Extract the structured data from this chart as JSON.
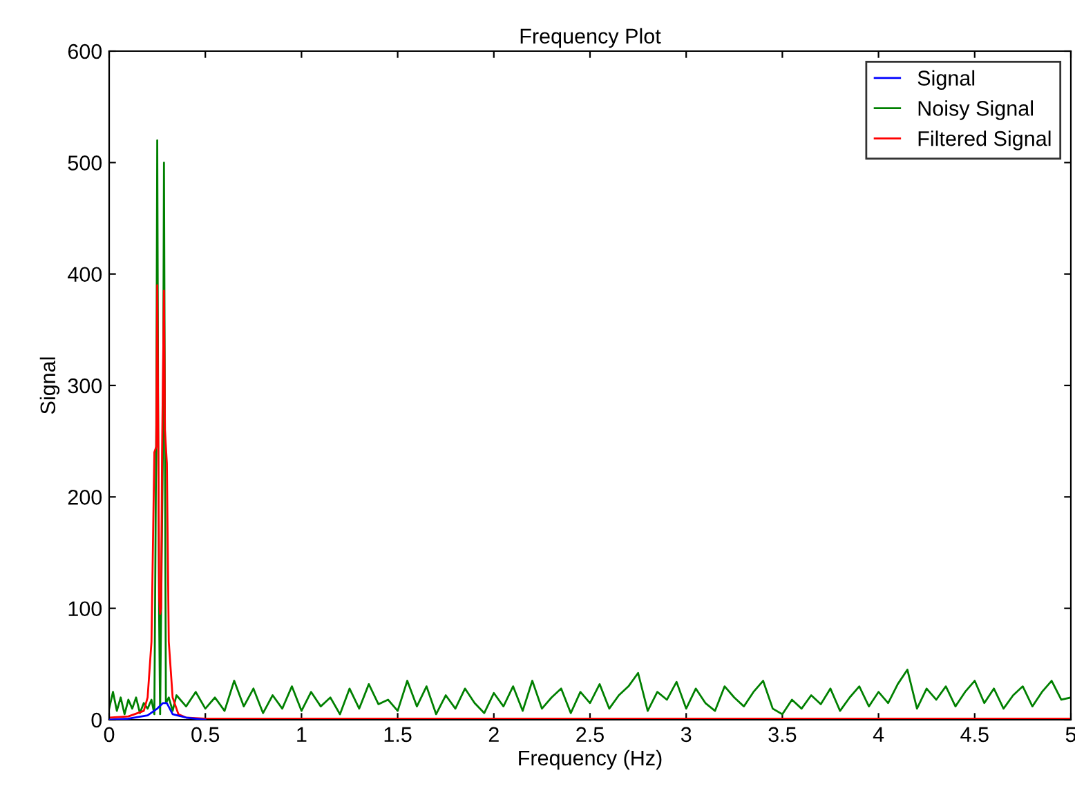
{
  "chart_data": {
    "type": "line",
    "title": "Frequency Plot",
    "xlabel": "Frequency (Hz)",
    "ylabel": "Signal",
    "xlim": [
      0,
      5
    ],
    "ylim": [
      0,
      600
    ],
    "xticks": [
      0,
      0.5,
      1,
      1.5,
      2,
      2.5,
      3,
      3.5,
      4,
      4.5,
      5
    ],
    "yticks": [
      0,
      100,
      200,
      300,
      400,
      500,
      600
    ],
    "grid": false,
    "legend": "top right",
    "marker": "none",
    "line_style": "solid",
    "series": [
      {
        "name": "Signal",
        "color": "#0000ff",
        "x": [
          0,
          0.1,
          0.2,
          0.25,
          0.28,
          0.3,
          0.33,
          0.4,
          0.5
        ],
        "values": [
          0,
          1,
          4,
          10,
          15,
          15,
          5,
          2,
          0
        ]
      },
      {
        "name": "Noisy Signal",
        "color": "#008000",
        "x": [
          0,
          0.02,
          0.04,
          0.06,
          0.08,
          0.1,
          0.12,
          0.14,
          0.16,
          0.18,
          0.2,
          0.22,
          0.235,
          0.245,
          0.25,
          0.255,
          0.26,
          0.265,
          0.27,
          0.28,
          0.285,
          0.29,
          0.295,
          0.31,
          0.33,
          0.35,
          0.4,
          0.45,
          0.5,
          0.55,
          0.6,
          0.65,
          0.7,
          0.75,
          0.8,
          0.85,
          0.9,
          0.95,
          1,
          1.05,
          1.1,
          1.15,
          1.2,
          1.25,
          1.3,
          1.35,
          1.4,
          1.45,
          1.5,
          1.55,
          1.6,
          1.65,
          1.7,
          1.75,
          1.8,
          1.85,
          1.9,
          1.95,
          2,
          2.05,
          2.1,
          2.15,
          2.2,
          2.25,
          2.3,
          2.35,
          2.4,
          2.45,
          2.5,
          2.55,
          2.6,
          2.65,
          2.7,
          2.75,
          2.8,
          2.85,
          2.9,
          2.95,
          3,
          3.05,
          3.1,
          3.15,
          3.2,
          3.25,
          3.3,
          3.35,
          3.4,
          3.45,
          3.5,
          3.55,
          3.6,
          3.65,
          3.7,
          3.75,
          3.8,
          3.85,
          3.9,
          3.95,
          4,
          4.05,
          4.1,
          4.15,
          4.2,
          4.25,
          4.3,
          4.35,
          4.4,
          4.45,
          4.5,
          4.55,
          4.6,
          4.65,
          4.7,
          4.75,
          4.8,
          4.85,
          4.9,
          4.95,
          5
        ],
        "values": [
          10,
          25,
          8,
          20,
          5,
          18,
          10,
          20,
          6,
          15,
          10,
          18,
          5,
          265,
          520,
          260,
          90,
          5,
          95,
          255,
          500,
          255,
          15,
          20,
          8,
          22,
          12,
          25,
          10,
          20,
          8,
          35,
          12,
          28,
          6,
          22,
          10,
          30,
          8,
          25,
          12,
          20,
          5,
          28,
          10,
          32,
          14,
          18,
          8,
          35,
          12,
          30,
          5,
          22,
          10,
          28,
          15,
          6,
          24,
          12,
          30,
          8,
          35,
          10,
          20,
          28,
          6,
          25,
          15,
          32,
          10,
          22,
          30,
          42,
          8,
          25,
          18,
          34,
          10,
          28,
          15,
          8,
          30,
          20,
          12,
          25,
          35,
          10,
          5,
          18,
          10,
          22,
          14,
          28,
          8,
          20,
          30,
          12,
          25,
          15,
          32,
          45,
          10,
          28,
          18,
          30,
          12,
          25,
          35,
          15,
          28,
          10,
          22,
          30,
          12,
          25,
          35,
          18,
          20
        ]
      },
      {
        "name": "Filtered Signal",
        "color": "#ff0000",
        "x": [
          0,
          0.1,
          0.18,
          0.2,
          0.22,
          0.235,
          0.245,
          0.25,
          0.255,
          0.26,
          0.265,
          0.27,
          0.275,
          0.285,
          0.29,
          0.3,
          0.31,
          0.33,
          0.36,
          0.4,
          0.5,
          5
        ],
        "values": [
          2,
          3,
          8,
          20,
          70,
          240,
          245,
          390,
          260,
          110,
          95,
          100,
          240,
          385,
          260,
          230,
          70,
          20,
          5,
          2,
          1,
          1
        ]
      }
    ]
  }
}
